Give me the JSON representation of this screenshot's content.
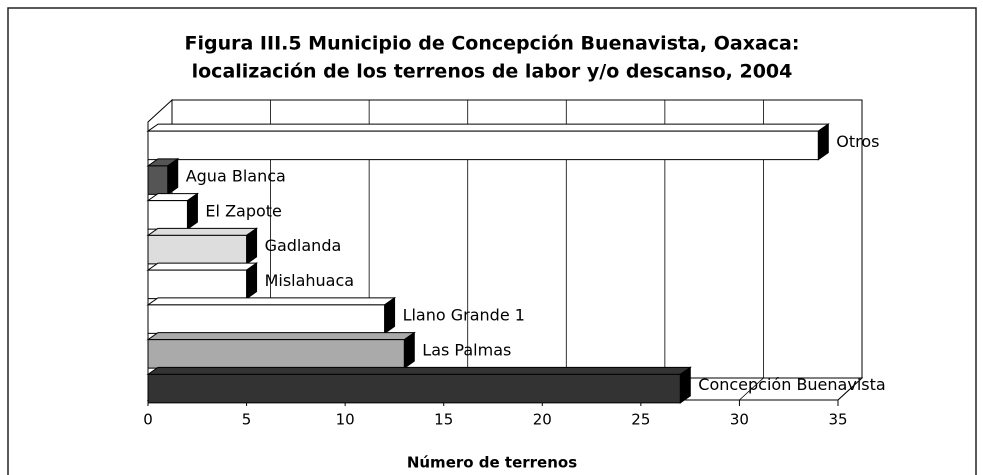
{
  "chart_data": {
    "type": "bar",
    "orientation": "horizontal",
    "title": "Figura III.5 Municipio de Concepción Buenavista, Oaxaca:",
    "subtitle": "localización de los terrenos de labor y/o descanso, 2004",
    "xlabel": "Número de terrenos",
    "categories": [
      "Otros",
      "Agua Blanca",
      "El Zapote",
      "Gadlanda",
      "Mislahuaca",
      "Llano Grande 1",
      "Las Palmas",
      "Concepción Buenavista"
    ],
    "values": [
      34,
      1,
      2,
      5,
      5,
      12,
      13,
      27
    ],
    "colors": [
      "#ffffff",
      "#555555",
      "#ffffff",
      "#dddddd",
      "#ffffff",
      "#ffffff",
      "#aaaaaa",
      "#333333"
    ],
    "xlim": [
      0,
      35
    ],
    "xticks": [
      0,
      5,
      10,
      15,
      20,
      25,
      30,
      35
    ],
    "grid": true
  }
}
